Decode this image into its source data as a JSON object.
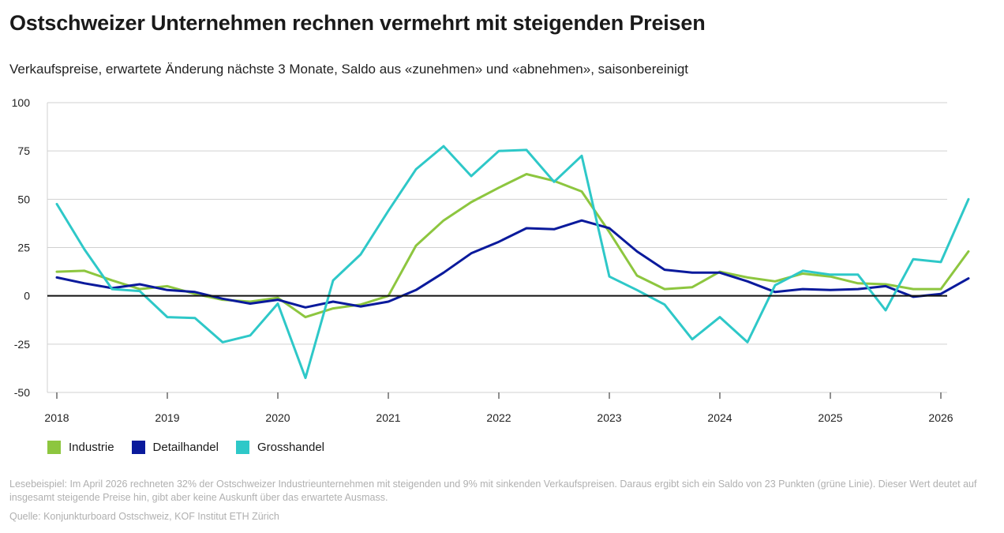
{
  "title": "Ostschweizer Unternehmen rechnen vermehrt mit steigenden Preisen",
  "subtitle": "Verkaufspreise, erwartete Änderung nächste 3 Monate, Saldo aus «zunehmen» und «abnehmen», saisonbereinigt",
  "note": "Lesebeispiel: Im April 2026 rechneten 32% der Ostschweizer Industrieunternehmen mit steigenden und 9% mit sinkenden Verkaufspreisen. Daraus ergibt sich ein Saldo von 23 Punkten (grüne Linie). Dieser Wert deutet auf insgesamt steigende Preise hin, gibt aber keine Auskunft über das erwartete Ausmass.",
  "source": "Quelle: Konjunkturboard Ostschweiz, KOF Institut ETH Zürich",
  "chart_data": {
    "type": "line",
    "xlim": [
      2018,
      2026
    ],
    "ylim": [
      -50,
      100
    ],
    "yticks": [
      100,
      75,
      50,
      25,
      0,
      -25,
      -50
    ],
    "xticks": [
      "2018",
      "2019",
      "2020",
      "2021",
      "2022",
      "2023",
      "2024",
      "2025",
      "2026"
    ],
    "grid": true,
    "legend_position": "bottom-left",
    "x": [
      2018.0,
      2018.25,
      2018.5,
      2018.75,
      2019.0,
      2019.25,
      2019.5,
      2019.75,
      2020.0,
      2020.25,
      2020.5,
      2020.75,
      2021.0,
      2021.25,
      2021.5,
      2021.75,
      2022.0,
      2022.25,
      2022.5,
      2022.75,
      2023.0,
      2023.25,
      2023.5,
      2023.75,
      2024.0,
      2024.25,
      2024.5,
      2024.75,
      2025.0,
      2025.25,
      2025.5,
      2025.75,
      2026.0,
      2026.25
    ],
    "series": [
      {
        "name": "Industrie",
        "color": "#8dc63f",
        "values": [
          12.5,
          13,
          8,
          3.5,
          5,
          1,
          -2,
          -3,
          -1,
          -11,
          -6.5,
          -4.5,
          0,
          26,
          39,
          48.5,
          56,
          63,
          59.5,
          54,
          33,
          10.5,
          3.5,
          4.5,
          12.5,
          9.5,
          7.5,
          11.5,
          10,
          6.5,
          6,
          3.5,
          3.5,
          23
        ]
      },
      {
        "name": "Detailhandel",
        "color": "#0a1a9c",
        "values": [
          9.5,
          6.5,
          4,
          6,
          3,
          2,
          -1.5,
          -4,
          -2,
          -6,
          -3,
          -5.5,
          -3,
          3,
          12,
          22,
          28,
          35,
          34.5,
          39,
          35,
          23,
          13.5,
          12,
          12,
          7.5,
          2,
          3.5,
          3,
          3.5,
          5,
          -0.5,
          1,
          9
        ]
      },
      {
        "name": "Grosshandel",
        "color": "#2ec8c8",
        "values": [
          47.5,
          24,
          3.5,
          2.5,
          -11,
          -11.5,
          -24,
          -20.5,
          -4,
          -42.5,
          8,
          21.5,
          44,
          65.5,
          77.5,
          62,
          75,
          75.5,
          59,
          72.5,
          10,
          3,
          -4.5,
          -22.5,
          -11,
          -24,
          5.5,
          13,
          11,
          11,
          -7.5,
          19,
          17.5,
          50
        ]
      }
    ]
  }
}
